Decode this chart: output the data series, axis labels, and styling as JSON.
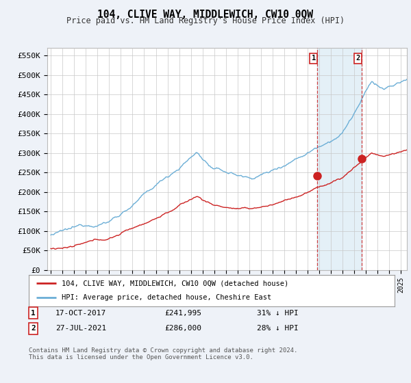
{
  "title": "104, CLIVE WAY, MIDDLEWICH, CW10 0QW",
  "subtitle": "Price paid vs. HM Land Registry's House Price Index (HPI)",
  "ylabel_ticks": [
    "£0",
    "£50K",
    "£100K",
    "£150K",
    "£200K",
    "£250K",
    "£300K",
    "£350K",
    "£400K",
    "£450K",
    "£500K",
    "£550K"
  ],
  "ytick_values": [
    0,
    50000,
    100000,
    150000,
    200000,
    250000,
    300000,
    350000,
    400000,
    450000,
    500000,
    550000
  ],
  "ylim": [
    0,
    570000
  ],
  "xlim_start": 1995.0,
  "xlim_end": 2025.5,
  "hpi_color": "#6baed6",
  "price_color": "#cc2222",
  "point1_x": 2017.8,
  "point1_y": 241995,
  "point2_x": 2021.6,
  "point2_y": 286000,
  "legend_line1": "104, CLIVE WAY, MIDDLEWICH, CW10 0QW (detached house)",
  "legend_line2": "HPI: Average price, detached house, Cheshire East",
  "annotation1_label": "1",
  "annotation1_date": "17-OCT-2017",
  "annotation1_price": "£241,995",
  "annotation1_hpi": "31% ↓ HPI",
  "annotation2_label": "2",
  "annotation2_date": "27-JUL-2021",
  "annotation2_price": "£286,000",
  "annotation2_hpi": "28% ↓ HPI",
  "footer": "Contains HM Land Registry data © Crown copyright and database right 2024.\nThis data is licensed under the Open Government Licence v3.0.",
  "background_color": "#eef2f8",
  "plot_bg_color": "#ffffff"
}
